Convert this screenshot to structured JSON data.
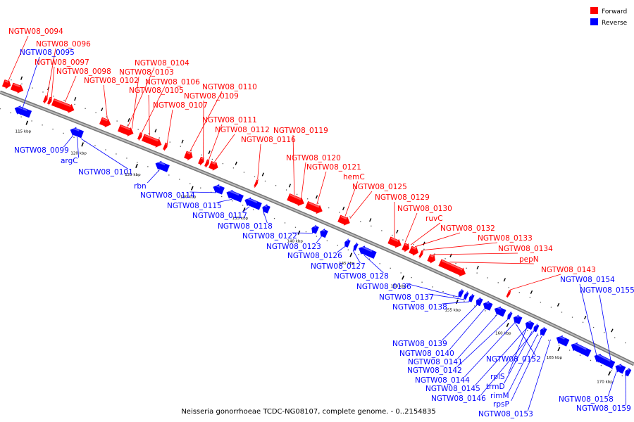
{
  "caption": "Neisseria gonorrhoeae TCDC-NG08107, complete genome. - 0..2154835",
  "legend": {
    "forward": {
      "label": "Forward",
      "color": "#ff0000"
    },
    "reverse": {
      "label": "Reverse",
      "color": "#0000ff"
    }
  },
  "colors": {
    "forward": "#ff0000",
    "reverse": "#0000ff",
    "backbone": "#888888",
    "text_forward": "#ff0000",
    "text_reverse": "#0000ff"
  },
  "ticks": [
    "115 kbp",
    "120 kbp",
    "125 kbp",
    "130 kbp",
    "135 kbp",
    "140 kbp",
    "145 kbp",
    "150 kbp",
    "155 kbp",
    "160 kbp",
    "165 kbp",
    "170 kbp"
  ],
  "forward_labels": [
    "NGTW08_0094",
    "NGTW08_0096",
    "NGTW08_0097",
    "NGTW08_0098",
    "NGTW08_0102",
    "NGTW08_0104",
    "NGTW08_0103",
    "NGTW08_0106",
    "NGTW08_0105",
    "NGTW08_0107",
    "NGTW08_0110",
    "NGTW08_0109",
    "NGTW08_0111",
    "NGTW08_0112",
    "NGTW08_0116",
    "NGTW08_0119",
    "NGTW08_0120",
    "NGTW08_0121",
    "hemC",
    "NGTW08_0125",
    "NGTW08_0129",
    "NGTW08_0130",
    "ruvC",
    "NGTW08_0132",
    "NGTW08_0133",
    "NGTW08_0134",
    "pepN",
    "NGTW08_0143"
  ],
  "reverse_labels": [
    "NGTW08_0095",
    "NGTW08_0099",
    "argC",
    "NGTW08_0101",
    "rbn",
    "NGTW08_0114",
    "NGTW08_0115",
    "NGTW08_0117",
    "NGTW08_0118",
    "NGTW08_0122",
    "NGTW08_0123",
    "NGTW08_0126",
    "NGTW08_0127",
    "NGTW08_0128",
    "NGTW08_0136",
    "NGTW08_0137",
    "NGTW08_0138",
    "NGTW08_0154",
    "NGTW08_0155",
    "NGTW08_0139",
    "NGTW08_0140",
    "NGTW08_0141",
    "NGTW08_0142",
    "NGTW08_0144",
    "NGTW08_0145",
    "NGTW08_0146",
    "NGTW08_0152",
    "rplS",
    "trmD",
    "rimM",
    "rpsP",
    "NGTW08_0153",
    "NGTW08_0158",
    "NGTW08_0159"
  ]
}
